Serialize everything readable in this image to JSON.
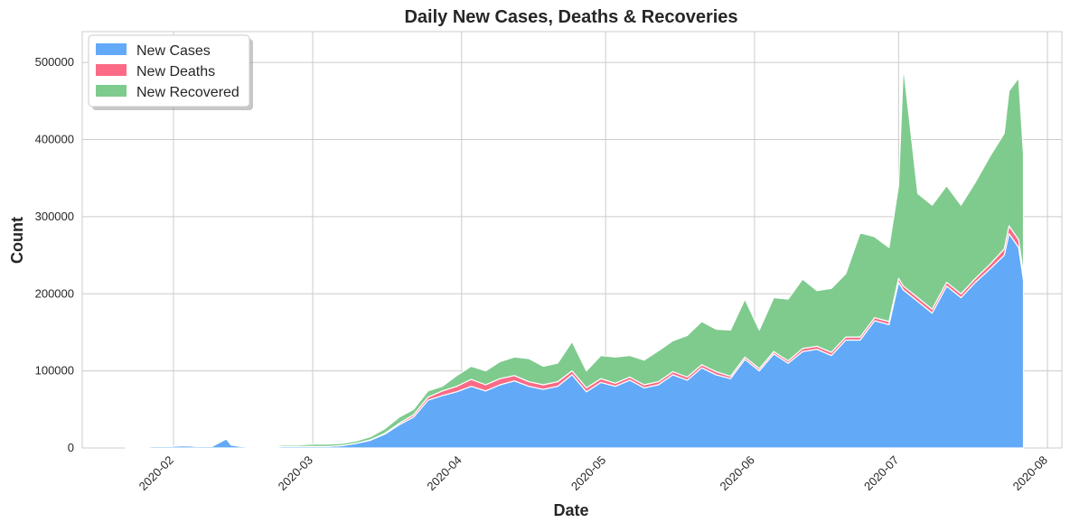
{
  "chart_data": {
    "type": "area",
    "stacked": true,
    "title": "Daily New Cases, Deaths & Recoveries",
    "xlabel": "Date",
    "ylabel": "Count",
    "x_tick_labels": [
      "2020-02",
      "2020-03",
      "2020-04",
      "2020-05",
      "2020-06",
      "2020-07",
      "2020-08"
    ],
    "x_tick_dates": [
      "2020-02-01",
      "2020-03-01",
      "2020-04-01",
      "2020-05-01",
      "2020-06-01",
      "2020-07-01",
      "2020-08-01"
    ],
    "xlim": [
      "2020-01-13",
      "2020-08-04"
    ],
    "y_ticks": [
      0,
      100000,
      200000,
      300000,
      400000,
      500000
    ],
    "y_tick_labels": [
      "0",
      "100000",
      "200000",
      "300000",
      "400000",
      "500000"
    ],
    "ylim": [
      0,
      540000
    ],
    "grid": true,
    "legend_position": "top-left",
    "x": [
      "2020-01-22",
      "2020-01-25",
      "2020-01-28",
      "2020-01-31",
      "2020-02-03",
      "2020-02-06",
      "2020-02-09",
      "2020-02-12",
      "2020-02-13",
      "2020-02-15",
      "2020-02-18",
      "2020-02-21",
      "2020-02-24",
      "2020-02-27",
      "2020-03-01",
      "2020-03-04",
      "2020-03-07",
      "2020-03-10",
      "2020-03-13",
      "2020-03-16",
      "2020-03-19",
      "2020-03-22",
      "2020-03-25",
      "2020-03-28",
      "2020-03-31",
      "2020-04-03",
      "2020-04-06",
      "2020-04-09",
      "2020-04-12",
      "2020-04-15",
      "2020-04-18",
      "2020-04-21",
      "2020-04-24",
      "2020-04-27",
      "2020-04-30",
      "2020-05-03",
      "2020-05-06",
      "2020-05-09",
      "2020-05-12",
      "2020-05-15",
      "2020-05-18",
      "2020-05-21",
      "2020-05-24",
      "2020-05-27",
      "2020-05-30",
      "2020-06-02",
      "2020-06-05",
      "2020-06-08",
      "2020-06-11",
      "2020-06-14",
      "2020-06-17",
      "2020-06-20",
      "2020-06-23",
      "2020-06-26",
      "2020-06-29",
      "2020-07-01",
      "2020-07-02",
      "2020-07-05",
      "2020-07-08",
      "2020-07-11",
      "2020-07-14",
      "2020-07-17",
      "2020-07-20",
      "2020-07-23",
      "2020-07-24",
      "2020-07-26",
      "2020-07-27"
    ],
    "series": [
      {
        "name": "New Cases",
        "color": "#62aaf8",
        "values": [
          500,
          1000,
          2000,
          2000,
          3000,
          2000,
          2000,
          12000,
          4000,
          2000,
          1000,
          1000,
          2000,
          2000,
          2000,
          2000,
          3000,
          6000,
          10000,
          18000,
          30000,
          40000,
          62000,
          68000,
          73000,
          80000,
          74000,
          82000,
          87000,
          80000,
          76000,
          80000,
          95000,
          73000,
          85000,
          80000,
          88000,
          78000,
          82000,
          95000,
          88000,
          104000,
          95000,
          90000,
          115000,
          100000,
          122000,
          110000,
          125000,
          128000,
          120000,
          140000,
          140000,
          165000,
          160000,
          215000,
          205000,
          190000,
          175000,
          210000,
          195000,
          215000,
          232000,
          250000,
          278000,
          260000,
          218000
        ]
      },
      {
        "name": "New Deaths",
        "color": "#fb6b86",
        "values": [
          0,
          0,
          0,
          0,
          0,
          0,
          0,
          0,
          0,
          0,
          0,
          0,
          0,
          0,
          0,
          0,
          0,
          0,
          500,
          1000,
          2000,
          3000,
          4000,
          6000,
          7000,
          9000,
          8000,
          8000,
          7000,
          6000,
          6000,
          6000,
          5000,
          5000,
          5000,
          4000,
          4000,
          4000,
          4000,
          4000,
          4000,
          4000,
          4000,
          3000,
          3000,
          3000,
          3000,
          3000,
          4000,
          4000,
          4000,
          4000,
          4000,
          4000,
          4000,
          5000,
          5000,
          5000,
          5000,
          5000,
          5000,
          5000,
          6000,
          8000,
          10000,
          10000,
          8000
        ]
      },
      {
        "name": "New Recovered",
        "color": "#7fcb8e",
        "values": [
          500,
          0,
          0,
          0,
          0,
          0,
          0,
          0,
          0,
          0,
          0,
          1000,
          2000,
          2000,
          3000,
          3000,
          3000,
          3000,
          4000,
          6000,
          8000,
          7000,
          8000,
          6000,
          14000,
          17000,
          18000,
          22000,
          24000,
          30000,
          24000,
          24000,
          38000,
          22000,
          30000,
          34000,
          28000,
          32000,
          40000,
          40000,
          54000,
          56000,
          55000,
          60000,
          75000,
          50000,
          70000,
          80000,
          90000,
          72000,
          83000,
          82000,
          135000,
          105000,
          96000,
          120000,
          285000,
          135000,
          135000,
          125000,
          115000,
          125000,
          140000,
          150000,
          175000,
          210000,
          155000
        ]
      }
    ]
  }
}
